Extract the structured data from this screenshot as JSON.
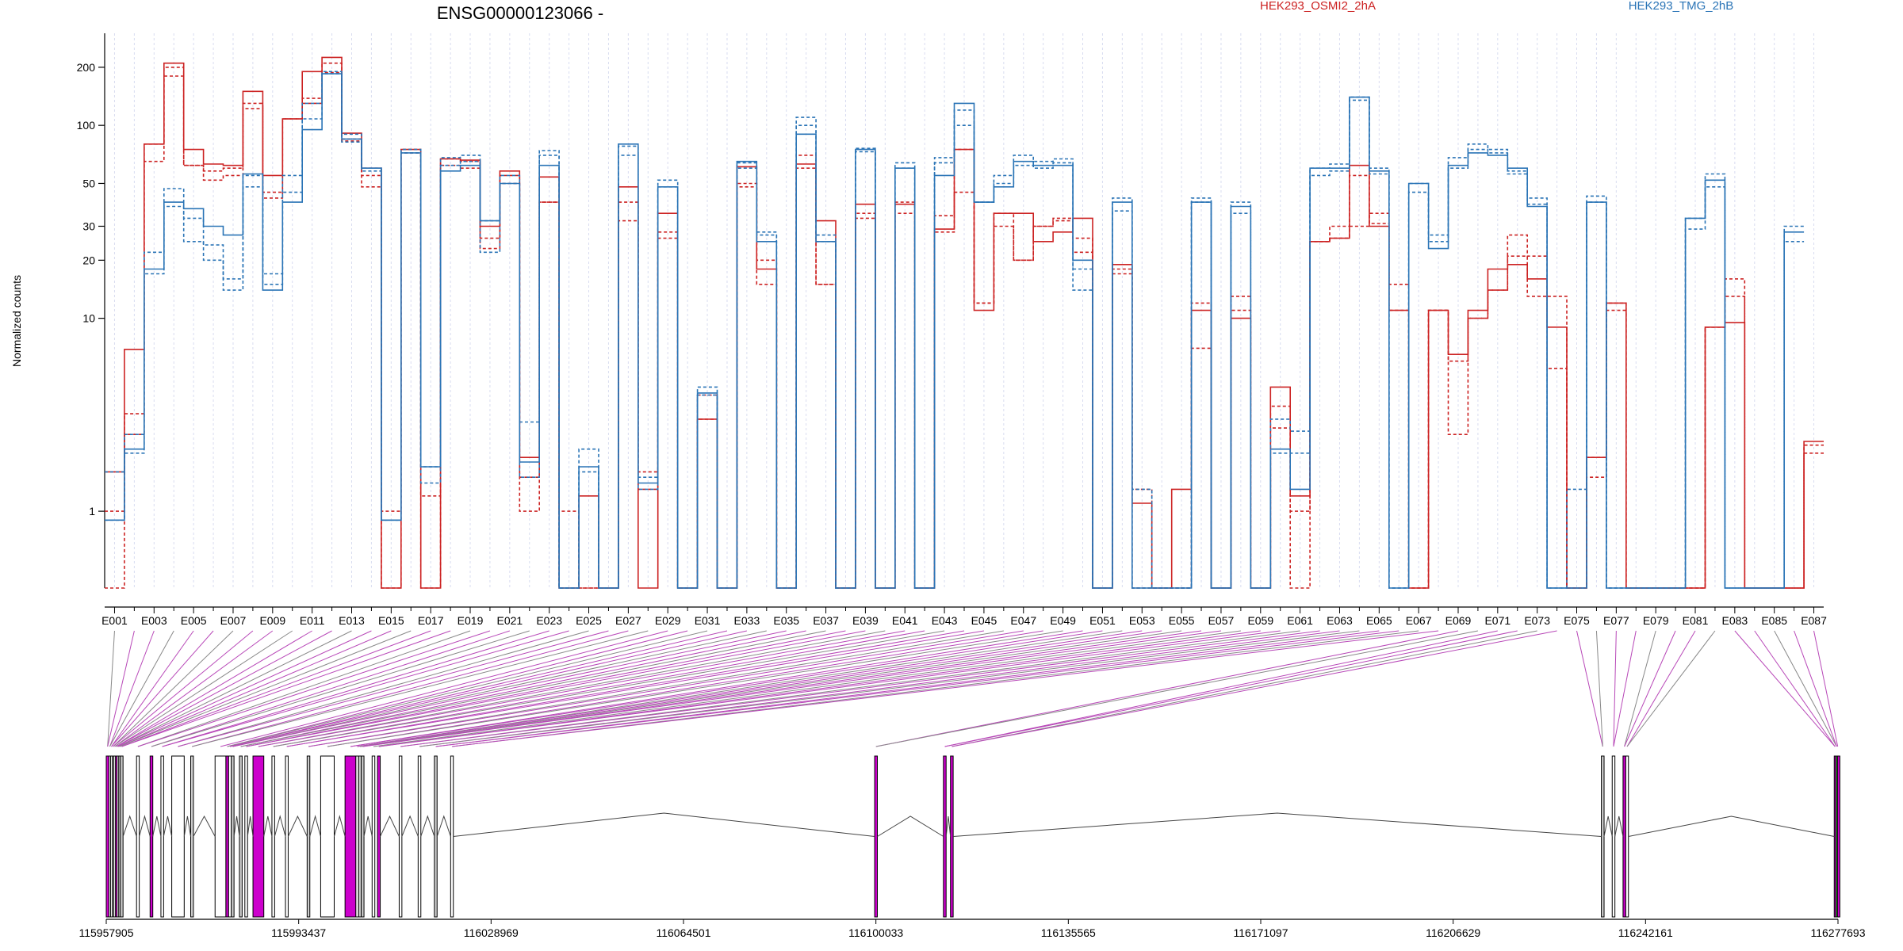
{
  "chart_data": {
    "type": "line",
    "title": "ENSG00000123066 -",
    "ylabel": "Normalized counts",
    "yscale": "log",
    "yticks": [
      1,
      10,
      20,
      30,
      50,
      100,
      200
    ],
    "ylim": [
      0.4,
      300
    ],
    "legend": [
      {
        "label": "HEK293_OSMI2_2hA",
        "color": "#cc2222"
      },
      {
        "label": "HEK293_TMG_2hB",
        "color": "#2a74b6"
      }
    ],
    "x_tick_labels": [
      "E001",
      "E003",
      "E005",
      "E007",
      "E009",
      "E011",
      "E013",
      "E015",
      "E017",
      "E019",
      "E021",
      "E023",
      "E025",
      "E027",
      "E029",
      "E031",
      "E033",
      "E035",
      "E037",
      "E039",
      "E041",
      "E043",
      "E045",
      "E047",
      "E049",
      "E051",
      "E053",
      "E055",
      "E057",
      "E059",
      "E061",
      "E063",
      "E065",
      "E067",
      "E069",
      "E071",
      "E073",
      "E075",
      "E077",
      "E079",
      "E081",
      "E083",
      "E085",
      "E087"
    ],
    "genomic_coordinates": [
      "115957905",
      "115993437",
      "116028969",
      "116064501",
      "116100033",
      "116135565",
      "116171097",
      "116206629",
      "116242161",
      "116277693"
    ],
    "genomic_range": [
      115957905,
      116277693
    ],
    "series": [
      {
        "name": "HEK293_OSMI2_2hA",
        "color": "#cc2222",
        "dashed": false,
        "values": [
          1.6,
          6.9,
          80,
          210,
          75,
          63,
          62,
          150,
          55,
          108,
          190,
          225,
          91,
          60,
          0.4,
          75,
          0.4,
          67,
          66,
          30,
          58,
          1.9,
          54,
          0.4,
          1.2,
          0.4,
          48,
          0.4,
          35,
          0.4,
          3,
          0.4,
          61,
          18,
          0.4,
          63,
          32,
          0.4,
          39,
          0.4,
          39,
          0.4,
          29,
          75,
          11,
          35,
          35,
          25,
          28,
          33,
          0.4,
          19,
          1.1,
          0.4,
          1.3,
          11,
          0.4,
          10,
          0.4,
          4.4,
          1.2,
          25,
          26,
          62,
          30,
          11,
          0.4,
          11,
          6.5,
          11,
          18,
          19,
          16,
          9,
          0.4,
          1.9,
          12,
          0.4,
          0.4,
          0.4,
          0.4,
          9,
          9.5,
          0.4,
          0.4,
          0.4,
          2.3
        ]
      },
      {
        "name": "HEK293_OSMI2_2hA",
        "color": "#cc2222",
        "dashed": true,
        "values": [
          1.0,
          2.5,
          65,
          200,
          62,
          52,
          55,
          130,
          42,
          108,
          130,
          210,
          85,
          48,
          1.0,
          72,
          1.2,
          62,
          60,
          26,
          50,
          1.5,
          40,
          1.0,
          0.4,
          0.4,
          32,
          1.3,
          26,
          0.4,
          4,
          0.4,
          50,
          15,
          0.4,
          60,
          15,
          0.4,
          33,
          0.4,
          35,
          0.4,
          34,
          45,
          12,
          30,
          20,
          30,
          33,
          26,
          0.4,
          18,
          1.3,
          0.4,
          0.4,
          7,
          0.4,
          13,
          0.4,
          2.7,
          1.0,
          25,
          30,
          55,
          31,
          15,
          0.4,
          11,
          6,
          10,
          14,
          21,
          13,
          5.5,
          0.4,
          1.5,
          11,
          0.4,
          0.4,
          0.4,
          0.4,
          9,
          16,
          0.4,
          0.4,
          0.4,
          2.2
        ]
      },
      {
        "name": "HEK293_OSMI2_2hA",
        "color": "#cc2222",
        "dashed": true,
        "values": [
          0.4,
          3.2,
          80,
          180,
          62,
          58,
          60,
          122,
          45,
          108,
          138,
          188,
          83,
          55,
          0.4,
          75,
          0.4,
          67,
          65,
          23,
          55,
          1.0,
          40,
          0.4,
          0.4,
          0.4,
          40,
          1.6,
          28,
          0.4,
          3,
          0.4,
          48,
          20,
          0.4,
          70,
          15,
          0.4,
          35,
          0.4,
          40,
          0.4,
          28,
          75,
          12,
          35,
          20,
          30,
          32,
          22,
          0.4,
          17,
          0.4,
          0.4,
          0.4,
          12,
          0.4,
          11,
          0.4,
          3.5,
          0.4,
          25,
          26,
          30,
          35,
          11,
          0.4,
          11,
          2.5,
          10,
          14,
          27,
          21,
          13,
          0.4,
          1.9,
          12,
          0.4,
          0.4,
          0.4,
          0.4,
          9,
          13,
          0.4,
          0.4,
          0.4,
          2.0
        ]
      },
      {
        "name": "HEK293_TMG_2hB",
        "color": "#2a74b6",
        "dashed": false,
        "values": [
          0.9,
          2.1,
          18,
          40,
          37,
          30,
          27,
          56,
          14,
          40,
          95,
          185,
          85,
          60,
          0.9,
          72,
          1.7,
          58,
          62,
          32,
          50,
          1.8,
          62,
          0.4,
          1.7,
          0.4,
          80,
          1.4,
          48,
          0.4,
          4.1,
          0.4,
          65,
          25,
          0.4,
          90,
          25,
          0.4,
          75,
          0.4,
          60,
          0.4,
          55,
          130,
          40,
          48,
          65,
          62,
          62,
          20,
          0.4,
          40,
          0.4,
          0.4,
          0.4,
          40,
          0.4,
          38,
          0.4,
          2.1,
          1.3,
          60,
          60,
          140,
          58,
          0.4,
          50,
          23,
          62,
          72,
          70,
          60,
          38,
          0.4,
          0.4,
          40,
          0.4,
          0.4,
          0.4,
          0.4,
          33,
          52,
          0.4,
          0.4,
          0.4,
          28
        ]
      },
      {
        "name": "HEK293_TMG_2hB",
        "color": "#2a74b6",
        "dashed": true,
        "values": [
          0.9,
          2.5,
          22,
          47,
          33,
          24,
          16,
          48,
          17,
          55,
          108,
          185,
          82,
          60,
          0.9,
          72,
          1.7,
          68,
          70,
          32,
          50,
          2.9,
          74,
          0.4,
          2.1,
          0.4,
          78,
          1.3,
          52,
          0.4,
          4.4,
          0.4,
          64,
          28,
          0.4,
          110,
          27,
          0.4,
          76,
          0.4,
          64,
          0.4,
          68,
          120,
          40,
          50,
          70,
          65,
          67,
          14,
          0.4,
          42,
          1.3,
          0.4,
          0.4,
          42,
          0.4,
          40,
          0.4,
          3,
          2.6,
          60,
          63,
          140,
          60,
          0.4,
          50,
          27,
          68,
          80,
          75,
          58,
          42,
          0.4,
          1.3,
          43,
          0.4,
          0.4,
          0.4,
          0.4,
          29,
          56,
          0.4,
          0.4,
          0.4,
          30
        ]
      },
      {
        "name": "HEK293_TMG_2hB",
        "color": "#2a74b6",
        "dashed": true,
        "values": [
          1.6,
          2.0,
          17,
          38,
          25,
          20,
          14,
          55,
          15,
          45,
          130,
          190,
          90,
          58,
          0.9,
          75,
          1.4,
          62,
          65,
          22,
          55,
          1.5,
          70,
          0.4,
          1.6,
          0.4,
          70,
          1.5,
          48,
          0.4,
          4,
          0.4,
          60,
          27,
          0.4,
          100,
          25,
          0.4,
          73,
          0.4,
          60,
          0.4,
          64,
          100,
          40,
          55,
          62,
          60,
          64,
          18,
          0.4,
          36,
          0.4,
          0.4,
          0.4,
          40,
          0.4,
          35,
          0.4,
          2.0,
          2.0,
          55,
          58,
          135,
          56,
          0.4,
          45,
          25,
          60,
          75,
          72,
          56,
          39,
          0.4,
          0.4,
          40,
          0.4,
          0.4,
          0.4,
          0.4,
          33,
          48,
          0.4,
          0.4,
          0.4,
          25
        ]
      }
    ]
  }
}
